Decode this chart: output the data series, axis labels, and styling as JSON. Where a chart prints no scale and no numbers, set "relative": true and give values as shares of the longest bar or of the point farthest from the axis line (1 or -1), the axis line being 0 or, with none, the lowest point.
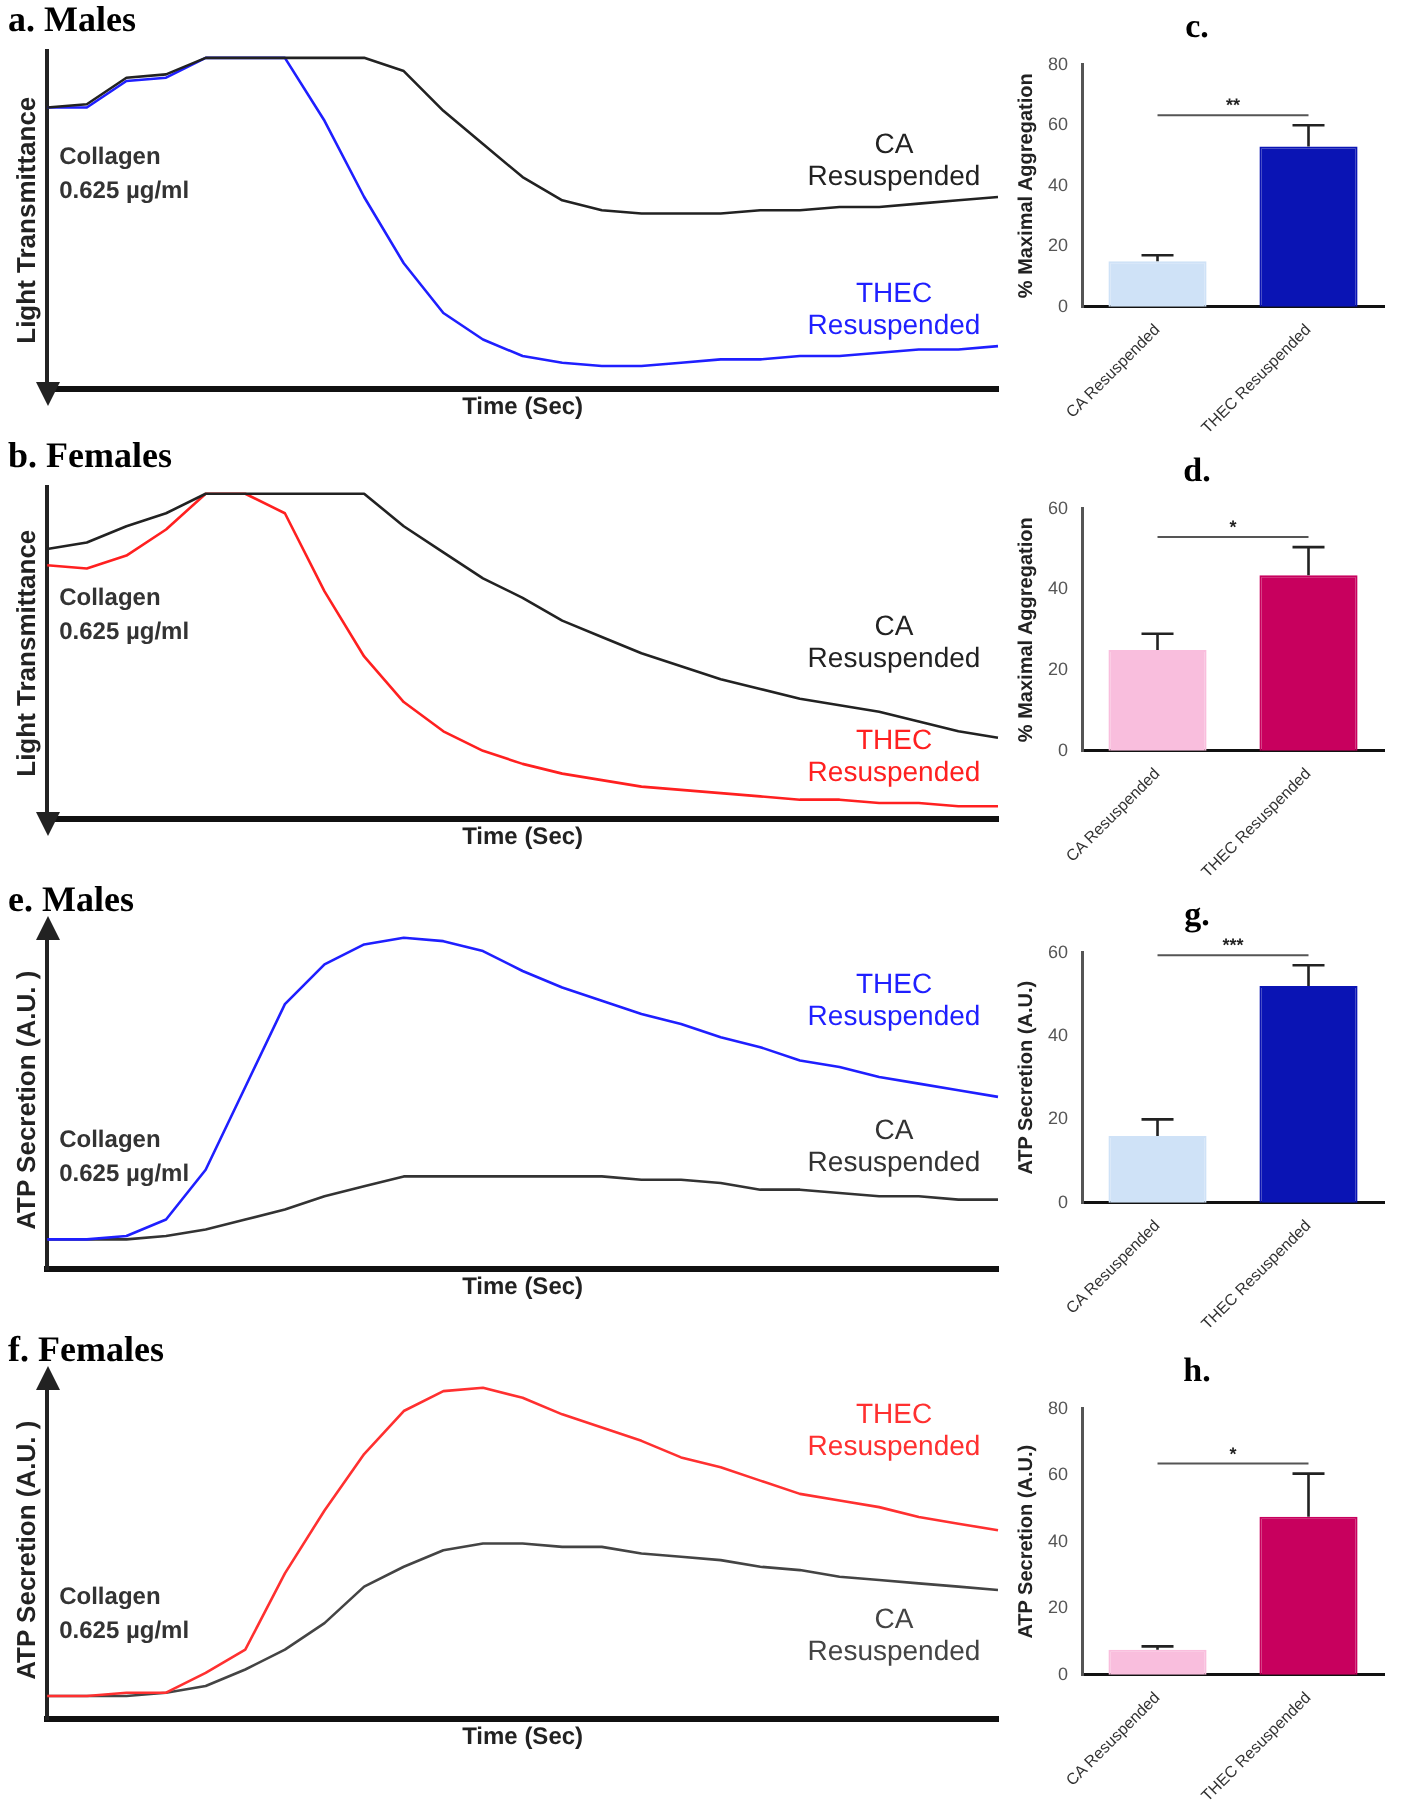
{
  "chart_data": [
    {
      "type": "line",
      "title": "a. Males",
      "xlabel": "Time (Sec)",
      "ylabel": "Light Transmittance",
      "relative": true,
      "tick_labels": false,
      "annotations": [
        "Collagen 0.625 µg/ml"
      ],
      "categories": [
        null,
        null,
        null,
        null,
        null,
        null,
        null,
        null,
        null,
        null,
        null,
        null,
        null,
        null,
        null,
        null,
        null,
        null,
        null,
        null,
        null,
        null,
        null,
        null,
        null
      ],
      "series": [
        {
          "name": "CA Resuspended",
          "color": "#222222",
          "values": [
            0.85,
            0.86,
            0.94,
            0.95,
            1,
            1,
            1,
            1,
            1,
            0.96,
            0.84,
            0.74,
            0.64,
            0.57,
            0.54,
            0.53,
            0.53,
            0.53,
            0.54,
            0.54,
            0.55,
            0.55,
            0.56,
            0.57,
            0.58
          ]
        },
        {
          "name": "THEC Resuspended",
          "color": "#1f1fff",
          "values": [
            0.85,
            0.85,
            0.93,
            0.94,
            1,
            1,
            1,
            0.81,
            0.58,
            0.38,
            0.23,
            0.15,
            0.1,
            0.08,
            0.07,
            0.07,
            0.08,
            0.09,
            0.09,
            0.1,
            0.1,
            0.11,
            0.12,
            0.12,
            0.13
          ]
        }
      ]
    },
    {
      "type": "bar",
      "title": "c.",
      "ylabel": "% Maximal Aggregation",
      "categories": [
        "CA Resuspended",
        "THEC Resuspended"
      ],
      "values": [
        15,
        53
      ],
      "colors": [
        "#cfe2f7",
        "#0a14b4"
      ],
      "errors": [
        [
          15,
          17
        ],
        [
          53,
          60
        ]
      ],
      "ylim": [
        0,
        80
      ],
      "yticks": [
        0,
        20,
        40,
        60,
        80
      ],
      "annotations": [
        "**"
      ]
    },
    {
      "type": "line",
      "title": "b. Females",
      "xlabel": "Time (Sec)",
      "ylabel": "Light Transmittance",
      "relative": true,
      "tick_labels": false,
      "annotations": [
        "Collagen 0.625 µg/ml"
      ],
      "categories": [
        null,
        null,
        null,
        null,
        null,
        null,
        null,
        null,
        null,
        null,
        null,
        null,
        null,
        null,
        null,
        null,
        null,
        null,
        null,
        null,
        null,
        null,
        null,
        null,
        null
      ],
      "series": [
        {
          "name": "CA Resuspended",
          "color": "#222222",
          "values": [
            0.83,
            0.85,
            0.9,
            0.94,
            1,
            1,
            1,
            1,
            1,
            0.9,
            0.82,
            0.74,
            0.68,
            0.61,
            0.56,
            0.51,
            0.47,
            0.43,
            0.4,
            0.37,
            0.35,
            0.33,
            0.3,
            0.27,
            0.25
          ]
        },
        {
          "name": "THEC Resuspended",
          "color": "#ff2020",
          "values": [
            0.78,
            0.77,
            0.81,
            0.89,
            1,
            1,
            0.94,
            0.7,
            0.5,
            0.36,
            0.27,
            0.21,
            0.17,
            0.14,
            0.12,
            0.1,
            0.09,
            0.08,
            0.07,
            0.06,
            0.06,
            0.05,
            0.05,
            0.04,
            0.04
          ]
        }
      ]
    },
    {
      "type": "bar",
      "title": "d.",
      "ylabel": "% Maximal Aggregation",
      "categories": [
        "CA Resuspended",
        "THEC Resuspended"
      ],
      "values": [
        25,
        43.5
      ],
      "colors": [
        "#f9bedd",
        "#c8005e"
      ],
      "errors": [
        [
          25,
          29
        ],
        [
          43.5,
          50.5
        ]
      ],
      "ylim": [
        0,
        60
      ],
      "yticks": [
        0,
        20,
        40,
        60
      ],
      "annotations": [
        "*"
      ]
    },
    {
      "type": "line",
      "title": "e. Males",
      "xlabel": "Time (Sec)",
      "ylabel": "ATP Secretion (A.U. )",
      "relative": true,
      "tick_labels": false,
      "annotations": [
        "Collagen 0.625 µg/ml"
      ],
      "categories": [
        null,
        null,
        null,
        null,
        null,
        null,
        null,
        null,
        null,
        null,
        null,
        null,
        null,
        null,
        null,
        null,
        null,
        null,
        null,
        null,
        null,
        null,
        null,
        null,
        null
      ],
      "series": [
        {
          "name": "THEC Resuspended",
          "color": "#1f1fff",
          "values": [
            0.09,
            0.09,
            0.1,
            0.15,
            0.3,
            0.55,
            0.8,
            0.92,
            0.98,
            1,
            0.99,
            0.96,
            0.9,
            0.85,
            0.81,
            0.77,
            0.74,
            0.7,
            0.67,
            0.63,
            0.61,
            0.58,
            0.56,
            0.54,
            0.52
          ]
        },
        {
          "name": "CA Resuspended",
          "color": "#333333",
          "values": [
            0.09,
            0.09,
            0.09,
            0.1,
            0.12,
            0.15,
            0.18,
            0.22,
            0.25,
            0.28,
            0.28,
            0.28,
            0.28,
            0.28,
            0.28,
            0.27,
            0.27,
            0.26,
            0.24,
            0.24,
            0.23,
            0.22,
            0.22,
            0.21,
            0.21
          ]
        }
      ]
    },
    {
      "type": "bar",
      "title": "g.",
      "ylabel": "ATP Secretion (A.U.)",
      "categories": [
        "CA Resuspended",
        "THEC Resuspended"
      ],
      "values": [
        16,
        52
      ],
      "colors": [
        "#cfe2f7",
        "#0a14b4"
      ],
      "errors": [
        [
          16,
          20
        ],
        [
          52,
          57
        ]
      ],
      "ylim": [
        0,
        60
      ],
      "yticks": [
        0,
        20,
        40,
        60
      ],
      "annotations": [
        "***"
      ]
    },
    {
      "type": "line",
      "title": "f. Females",
      "xlabel": "Time (Sec)",
      "ylabel": "ATP Secretion (A.U. )",
      "relative": true,
      "tick_labels": false,
      "annotations": [
        "Collagen 0.625 µg/ml"
      ],
      "categories": [
        null,
        null,
        null,
        null,
        null,
        null,
        null,
        null,
        null,
        null,
        null,
        null,
        null,
        null,
        null,
        null,
        null,
        null,
        null,
        null,
        null,
        null,
        null,
        null,
        null
      ],
      "series": [
        {
          "name": "THEC Resuspended",
          "color": "#ff3030",
          "values": [
            0.07,
            0.07,
            0.08,
            0.08,
            0.14,
            0.21,
            0.44,
            0.63,
            0.8,
            0.93,
            0.99,
            1,
            0.97,
            0.92,
            0.88,
            0.84,
            0.79,
            0.76,
            0.72,
            0.68,
            0.66,
            0.64,
            0.61,
            0.59,
            0.57
          ]
        },
        {
          "name": "CA Resuspended",
          "color": "#444444",
          "values": [
            0.07,
            0.07,
            0.07,
            0.08,
            0.1,
            0.15,
            0.21,
            0.29,
            0.4,
            0.46,
            0.51,
            0.53,
            0.53,
            0.52,
            0.52,
            0.5,
            0.49,
            0.48,
            0.46,
            0.45,
            0.43,
            0.42,
            0.41,
            0.4,
            0.39
          ]
        }
      ]
    },
    {
      "type": "bar",
      "title": "h.",
      "ylabel": "ATP Secretion (A.U.)",
      "categories": [
        "CA Resuspended",
        "THEC Resuspended"
      ],
      "values": [
        7.5,
        47.5
      ],
      "colors": [
        "#f9bedd",
        "#c8005e"
      ],
      "errors": [
        [
          7.5,
          8.5
        ],
        [
          47.5,
          60.5
        ]
      ],
      "ylim": [
        0,
        80
      ],
      "yticks": [
        0,
        20,
        40,
        60,
        80
      ],
      "annotations": [
        "*"
      ]
    }
  ]
}
